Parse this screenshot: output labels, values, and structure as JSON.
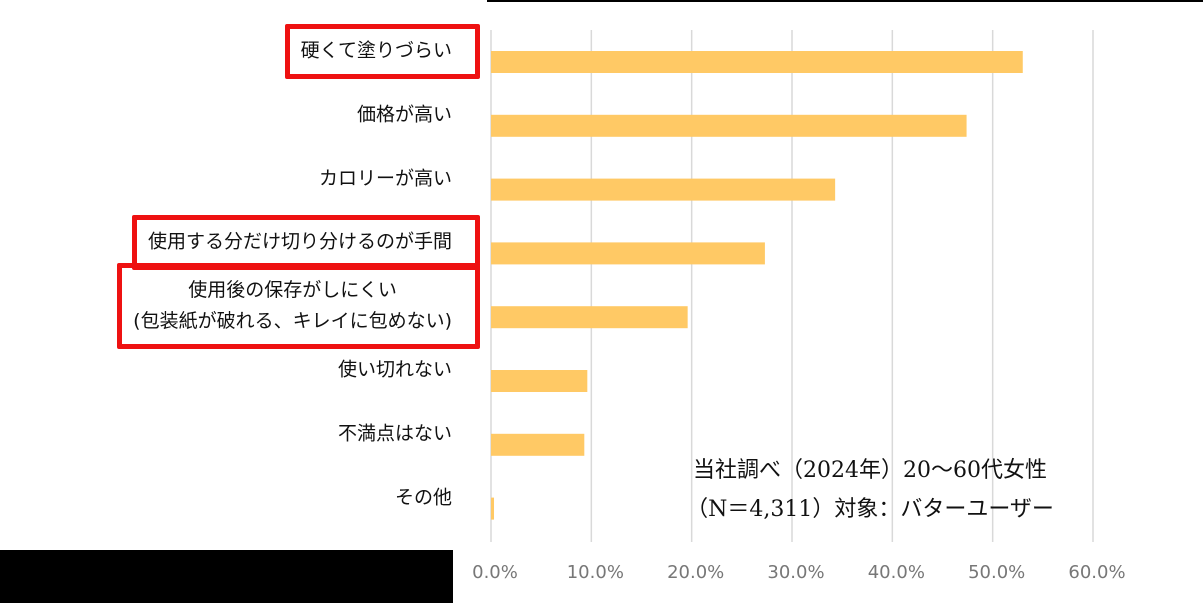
{
  "chart_data": {
    "type": "barh",
    "categories": [
      "硬くて塗りづらい",
      "価格が高い",
      "カロリーが高い",
      "使用する分だけ切り分けるのが手間",
      "使用後の保存がしにくい\n(包装紙が破れる、キレイに包めない)",
      "使い切れない",
      "不満点はない",
      "その他"
    ],
    "values": [
      53.0,
      47.4,
      34.3,
      27.3,
      19.6,
      9.6,
      9.3,
      0.3
    ],
    "color": "#ffc965",
    "xlim": [
      0,
      60
    ],
    "xticks": [
      {
        "value": 0,
        "label": "0.0%"
      },
      {
        "value": 10,
        "label": "10.0%"
      },
      {
        "value": 20,
        "label": "20.0%"
      },
      {
        "value": 30,
        "label": "30.0%"
      },
      {
        "value": 40,
        "label": "40.0%"
      },
      {
        "value": 50,
        "label": "50.0%"
      },
      {
        "value": 60,
        "label": "60.0%"
      }
    ],
    "grid": true,
    "highlight": [
      0,
      3,
      4
    ],
    "annotations": [
      "当社調べ（2024年）20〜60代女性",
      "（N＝4,311）対象：バターユーザー"
    ]
  }
}
